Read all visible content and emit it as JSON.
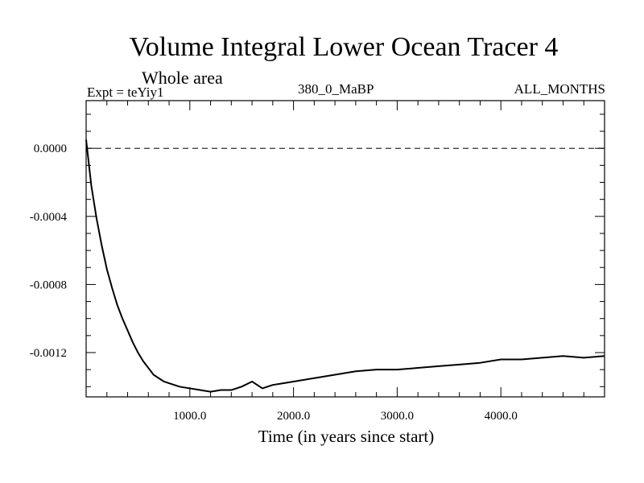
{
  "chart_data": {
    "type": "line",
    "title": "Volume Integral Lower Ocean Tracer 4",
    "subtitle": "Whole area",
    "expt_label": "Expt = teYiy1",
    "center_label": "380_0_MaBP",
    "right_label": "ALL_MONTHS",
    "xlabel": "Time (in years since start)",
    "ylabel": "",
    "xlim": [
      0,
      5000
    ],
    "ylim": [
      -0.00146,
      0.00028
    ],
    "xticks": [
      1000,
      2000,
      3000,
      4000
    ],
    "xtick_labels": [
      "1000.0",
      "2000.0",
      "3000.0",
      "4000.0"
    ],
    "yticks": [
      0.0,
      -0.0004,
      -0.0008,
      -0.0012
    ],
    "ytick_labels": [
      "0.0000",
      "-0.0004",
      "-0.0008",
      "-0.0012"
    ],
    "reference_line": {
      "y": 0.0,
      "style": "dashed"
    },
    "grid": false,
    "series": [
      {
        "name": "Tracer 4",
        "x": [
          0,
          50,
          100,
          150,
          200,
          250,
          300,
          350,
          400,
          450,
          500,
          550,
          600,
          650,
          700,
          750,
          800,
          900,
          1000,
          1100,
          1200,
          1300,
          1400,
          1500,
          1600,
          1700,
          1800,
          1900,
          2000,
          2200,
          2400,
          2600,
          2800,
          3000,
          3200,
          3400,
          3600,
          3800,
          4000,
          4200,
          4400,
          4600,
          4800,
          5000
        ],
        "y": [
          5e-05,
          -0.00022,
          -0.00041,
          -0.00057,
          -0.00071,
          -0.00082,
          -0.00092,
          -0.001,
          -0.00107,
          -0.00114,
          -0.0012,
          -0.00125,
          -0.00129,
          -0.00133,
          -0.00135,
          -0.00137,
          -0.00138,
          -0.0014,
          -0.00141,
          -0.00142,
          -0.00143,
          -0.00142,
          -0.00142,
          -0.0014,
          -0.00137,
          -0.00141,
          -0.00139,
          -0.00138,
          -0.00137,
          -0.00135,
          -0.00133,
          -0.00131,
          -0.0013,
          -0.0013,
          -0.00129,
          -0.00128,
          -0.00127,
          -0.00126,
          -0.00124,
          -0.00124,
          -0.00123,
          -0.00122,
          -0.00123,
          -0.00122
        ]
      }
    ]
  }
}
